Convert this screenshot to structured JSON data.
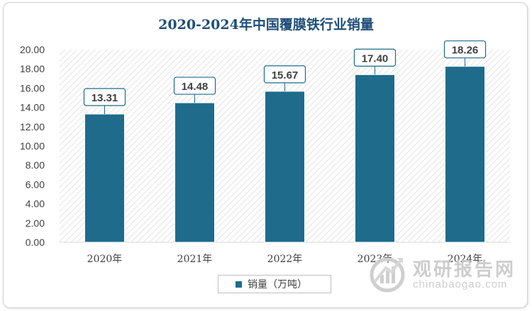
{
  "colors": {
    "bar": "#1e6b8c",
    "title": "#1f4e79",
    "text": "#404040",
    "watermark": "#c8c8c8"
  },
  "watermark": {
    "name": "观研报告网",
    "url": "chinabaogao.com",
    "logo_icon": "chart-arrow-logo"
  },
  "chart_data": {
    "type": "bar",
    "title": "2020-2024年中国覆膜铁行业销量",
    "categories": [
      "2020年",
      "2021年",
      "2022年",
      "2023年",
      "2024年"
    ],
    "series": [
      {
        "name": "销量（万吨）",
        "values": [
          13.31,
          14.48,
          15.67,
          17.4,
          18.26
        ]
      }
    ],
    "data_labels": [
      "13.31",
      "14.48",
      "15.67",
      "17.40",
      "18.26"
    ],
    "y_ticks": [
      "0.00",
      "2.00",
      "4.00",
      "6.00",
      "8.00",
      "10.00",
      "12.00",
      "14.00",
      "16.00",
      "18.00",
      "20.00"
    ],
    "ylim": [
      0,
      20
    ],
    "xlabel": "",
    "ylabel": "",
    "grid": false,
    "legend_position": "bottom",
    "plot_background": "diagonal-hatch"
  }
}
